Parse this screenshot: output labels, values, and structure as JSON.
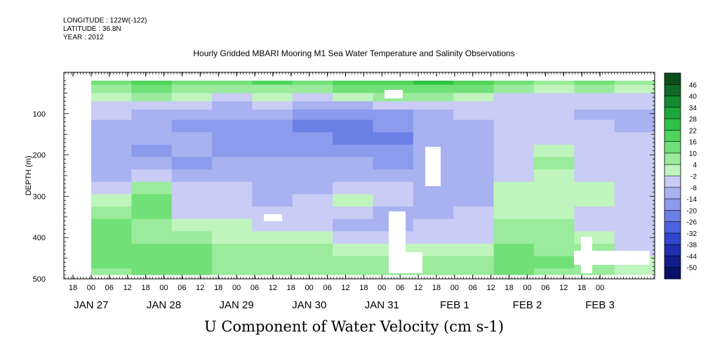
{
  "meta": {
    "longitude": "LONGITUDE : 122W(-122)",
    "latitude": "LATITUDE : 36.8N",
    "year": "YEAR : 2012"
  },
  "chart_data": {
    "type": "heatmap",
    "title": "Hourly Gridded MBARI Mooring M1 Sea Water Temperature and Salinity Observations",
    "subtitle": "U Component of Water Velocity (cm s-1)",
    "ylabel": "DEPTH (m)",
    "xlabel": "",
    "ylim": [
      0,
      500
    ],
    "y_inverted": true,
    "y_ticks": [
      100,
      200,
      300,
      400,
      500
    ],
    "x_start_hours_before_jan27_00": 6,
    "x_hour_labels": [
      "18",
      "00",
      "06",
      "12",
      "18",
      "00",
      "06",
      "12",
      "18",
      "00",
      "06",
      "12",
      "18",
      "00",
      "06",
      "12",
      "18",
      "00",
      "06",
      "12",
      "18",
      "00",
      "06",
      "12",
      "18",
      "00",
      "06",
      "12",
      "18",
      "00"
    ],
    "x_date_labels": [
      {
        "label": "JAN 27",
        "tick_index": 1
      },
      {
        "label": "JAN 28",
        "tick_index": 5
      },
      {
        "label": "JAN 29",
        "tick_index": 9
      },
      {
        "label": "JAN 30",
        "tick_index": 13
      },
      {
        "label": "JAN 31",
        "tick_index": 17
      },
      {
        "label": "FEB  1",
        "tick_index": 21
      },
      {
        "label": "FEB  2",
        "tick_index": 25
      },
      {
        "label": "FEB  3",
        "tick_index": 29
      }
    ],
    "colorbar": {
      "levels": [
        "46",
        "40",
        "34",
        "28",
        "22",
        "16",
        "10",
        "4",
        "-2",
        "-8",
        "-14",
        "-20",
        "-26",
        "-32",
        "-38",
        "-44",
        "-50"
      ],
      "colors": [
        "#0b4d1c",
        "#0f6a26",
        "#158a30",
        "#1ea83b",
        "#2ec247",
        "#4fd35a",
        "#72e078",
        "#9aeb9b",
        "#bff4bd",
        "#c9ccf4",
        "#a8b2f0",
        "#8c9bec",
        "#6b80e6",
        "#4b63de",
        "#2f46cc",
        "#1e2fb0",
        "#121d8c",
        "#0a1068"
      ]
    },
    "field": {
      "depth_levels_m": [
        20,
        40,
        60,
        80,
        100,
        130,
        160,
        190,
        220,
        250,
        280,
        310,
        340,
        370,
        400,
        430,
        460,
        490
      ],
      "time_segments": [
        {
          "label": "JAN 27 00",
          "values": [
            10,
            4,
            -2,
            -8,
            -8,
            -14,
            -14,
            -14,
            -14,
            -14,
            -8,
            -2,
            4,
            10,
            10,
            10,
            10,
            4
          ]
        },
        {
          "label": "JAN 27 12",
          "values": [
            16,
            10,
            4,
            -8,
            -14,
            -14,
            -14,
            -20,
            -14,
            -8,
            4,
            10,
            10,
            4,
            4,
            10,
            10,
            10
          ]
        },
        {
          "label": "JAN 28 00",
          "values": [
            10,
            4,
            -2,
            -8,
            -14,
            -20,
            -14,
            -14,
            -20,
            -14,
            -8,
            -8,
            -8,
            -2,
            4,
            10,
            10,
            10
          ]
        },
        {
          "label": "JAN 28 12",
          "values": [
            10,
            4,
            -8,
            -14,
            -14,
            -20,
            -20,
            -20,
            -14,
            -14,
            -8,
            -8,
            -8,
            -2,
            -2,
            4,
            4,
            4
          ]
        },
        {
          "label": "JAN 29 00",
          "values": [
            16,
            4,
            -2,
            -8,
            -14,
            -20,
            -20,
            -20,
            -14,
            -14,
            -14,
            -14,
            -8,
            -8,
            -2,
            4,
            4,
            4
          ]
        },
        {
          "label": "JAN 29 12",
          "values": [
            10,
            4,
            -8,
            -14,
            -20,
            -26,
            -20,
            -20,
            -14,
            -14,
            -14,
            -8,
            -8,
            -8,
            -2,
            4,
            4,
            4
          ]
        },
        {
          "label": "JAN 30 00",
          "values": [
            16,
            10,
            -2,
            -14,
            -20,
            -26,
            -26,
            -20,
            -14,
            -14,
            -8,
            -2,
            -8,
            -14,
            -8,
            -2,
            4,
            4
          ]
        },
        {
          "label": "JAN 30 12",
          "values": [
            16,
            10,
            4,
            -8,
            -20,
            -20,
            -26,
            -20,
            -20,
            -14,
            -8,
            -8,
            -14,
            -14,
            -8,
            -2,
            4,
            4
          ]
        },
        {
          "label": "JAN 31 00",
          "values": [
            22,
            10,
            4,
            -8,
            -14,
            -14,
            -14,
            -14,
            -14,
            -14,
            -14,
            -14,
            -14,
            -8,
            -8,
            -2,
            4,
            4
          ]
        },
        {
          "label": "JAN 31 12",
          "values": [
            16,
            10,
            -2,
            -8,
            -8,
            -14,
            -14,
            -14,
            -14,
            -14,
            -14,
            -14,
            -8,
            -8,
            -8,
            -2,
            4,
            4
          ]
        },
        {
          "label": "FEB 1 00",
          "values": [
            10,
            4,
            -8,
            -8,
            -8,
            -8,
            -8,
            -8,
            -8,
            -8,
            -2,
            -2,
            -2,
            4,
            4,
            10,
            10,
            10
          ]
        },
        {
          "label": "FEB 1 12",
          "values": [
            4,
            -2,
            -8,
            -8,
            -8,
            -8,
            -8,
            -2,
            4,
            -2,
            -2,
            -2,
            -2,
            4,
            4,
            4,
            10,
            4
          ]
        },
        {
          "label": "FEB 2 00",
          "values": [
            10,
            4,
            -8,
            -8,
            -14,
            -8,
            -8,
            -8,
            -8,
            -8,
            -2,
            -2,
            -8,
            -8,
            -2,
            4,
            4,
            4
          ]
        },
        {
          "label": "FEB 2 12",
          "values": [
            4,
            -2,
            -8,
            -8,
            -14,
            -14,
            -8,
            -8,
            -8,
            -8,
            -8,
            -8,
            -8,
            -8,
            -8,
            -8,
            -2,
            -2
          ]
        }
      ],
      "masked_regions_label": "no data (white)"
    }
  }
}
